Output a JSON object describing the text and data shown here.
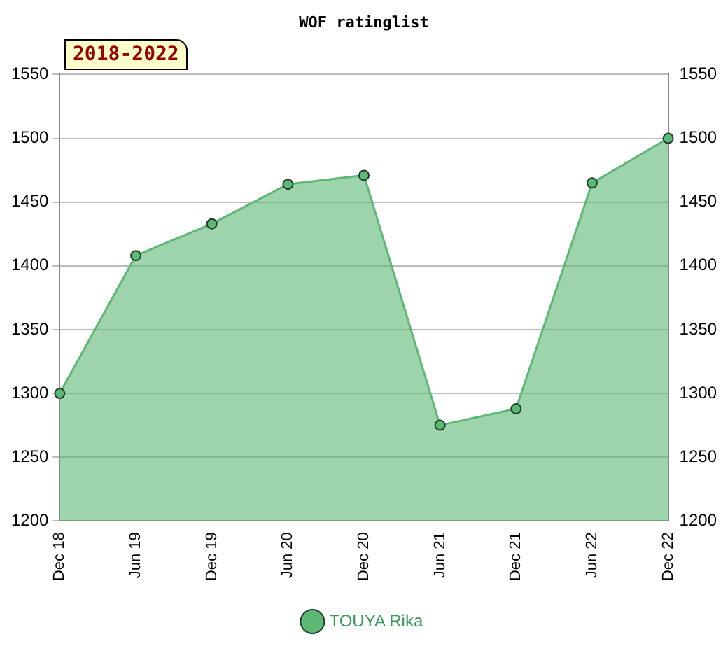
{
  "chart_data": {
    "type": "area",
    "title": "WOF ratinglist",
    "annotations": [
      "2018-2022"
    ],
    "categories": [
      "Dec 18",
      "Jun 19",
      "Dec 19",
      "Jun 20",
      "Dec 20",
      "Jun 21",
      "Dec 21",
      "Jun 22",
      "Dec 22"
    ],
    "series": [
      {
        "name": "TOUYA Rika",
        "color": "#5cb874",
        "values": [
          1300,
          1408,
          1433,
          1464,
          1471,
          1275,
          1288,
          1465,
          1500
        ]
      }
    ],
    "ylim": [
      1200,
      1550
    ],
    "yticks": [
      1200,
      1250,
      1300,
      1350,
      1400,
      1450,
      1500,
      1550
    ],
    "y2lim": [
      1200,
      1550
    ],
    "y2ticks": [
      1200,
      1250,
      1300,
      1350,
      1400,
      1450,
      1500,
      1550
    ],
    "grid": "y",
    "legend": "bottom",
    "marker": "circle"
  }
}
